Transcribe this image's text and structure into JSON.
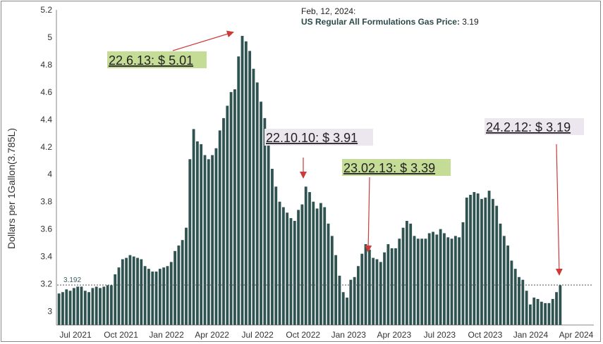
{
  "header": {
    "date": "Feb, 12, 2024:",
    "series_label": "US Regular All Formulations Gas Price",
    "value": "3.19"
  },
  "reference_line": {
    "value": 3.192,
    "label": "3.192"
  },
  "annotations": [
    {
      "text": "22.6.13: $ 5.01",
      "bg": "#c5dc96"
    },
    {
      "text": "22.10.10: $ 3.91",
      "bg": "#ece6ee"
    },
    {
      "text": "23.02.13: $ 3.39",
      "bg": "#c5dc96"
    },
    {
      "text": "24.2.12: $ 3.19",
      "bg": "#ece6ee"
    }
  ],
  "chart_data": {
    "type": "bar",
    "ylabel": "Dollars per 1Gallon(3.785L)",
    "xlabel": "",
    "ylim": [
      2.9,
      5.2
    ],
    "yticks": [
      3,
      3.2,
      3.4,
      3.6,
      3.8,
      4,
      4.2,
      4.4,
      4.6,
      4.8,
      5,
      5.2
    ],
    "ytick_labels": [
      "3",
      "3.2",
      "3.4",
      "3.6",
      "3.8",
      "4",
      "4.2",
      "4.4",
      "4.6",
      "4.8",
      "5",
      "5.2"
    ],
    "xtick_labels": [
      "Jul 2021",
      "Oct 2021",
      "Jan 2022",
      "Apr 2022",
      "Jul 2022",
      "Oct 2022",
      "Jan 2023",
      "Apr 2023",
      "Jul 2023",
      "Oct 2023",
      "Jan 2024",
      "Apr 2024"
    ],
    "bar_color": "#2e5350",
    "series": [
      {
        "values": [
          3.13,
          3.14,
          3.16,
          3.15,
          3.17,
          3.18,
          3.18,
          3.15,
          3.14,
          3.17,
          3.18,
          3.17,
          3.18,
          3.19,
          3.19,
          3.27,
          3.32,
          3.38,
          3.39,
          3.41,
          3.4,
          3.39,
          3.38,
          3.33,
          3.31,
          3.29,
          3.29,
          3.31,
          3.32,
          3.33,
          3.36,
          3.44,
          3.48,
          3.52,
          3.61,
          4.11,
          4.33,
          4.24,
          4.22,
          4.14,
          4.11,
          4.14,
          4.19,
          4.32,
          4.41,
          4.5,
          4.6,
          4.62,
          4.86,
          5.01,
          4.97,
          4.9,
          4.77,
          4.67,
          4.53,
          4.41,
          4.23,
          4.04,
          3.91,
          3.8,
          3.76,
          3.72,
          3.68,
          3.66,
          3.74,
          3.78,
          3.91,
          3.87,
          3.8,
          3.75,
          3.79,
          3.76,
          3.64,
          3.55,
          3.41,
          3.26,
          3.14,
          3.1,
          3.23,
          3.25,
          3.33,
          3.42,
          3.49,
          3.45,
          3.39,
          3.38,
          3.36,
          3.43,
          3.49,
          3.46,
          3.46,
          3.53,
          3.61,
          3.66,
          3.64,
          3.55,
          3.53,
          3.53,
          3.53,
          3.57,
          3.58,
          3.56,
          3.6,
          3.57,
          3.54,
          3.53,
          3.55,
          3.54,
          3.65,
          3.83,
          3.85,
          3.87,
          3.86,
          3.82,
          3.83,
          3.88,
          3.82,
          3.77,
          3.64,
          3.55,
          3.48,
          3.37,
          3.31,
          3.25,
          3.23,
          3.15,
          3.05,
          3.1,
          3.09,
          3.07,
          3.06,
          3.06,
          3.09,
          3.14,
          3.19
        ]
      }
    ]
  }
}
